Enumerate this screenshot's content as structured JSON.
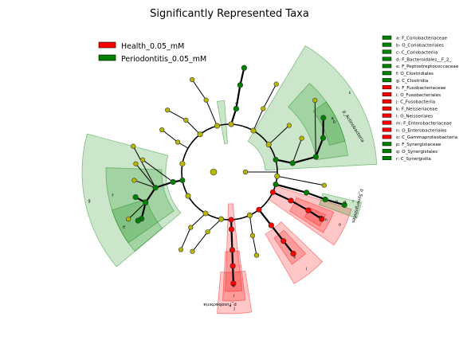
{
  "chart_data": {
    "type": "cladogram",
    "title": "Significantly Represented Taxa",
    "legend_groups": [
      {
        "name": "Health_0.05_mM",
        "color": "#ff0000"
      },
      {
        "name": "Periodontitis_0.05_mM",
        "color": "#008000"
      }
    ],
    "legend_position": "top-left",
    "taxa_legend_position": "right",
    "colors": {
      "health": "#ff0000",
      "periodontitis": "#008000",
      "neutral_node": "#b8b800"
    },
    "taxa": [
      {
        "key": "a",
        "label": "a: F_Coriobacteriaceae",
        "group": "Periodontitis_0.05_mM"
      },
      {
        "key": "b",
        "label": "b: O_Coriobacteriales",
        "group": "Periodontitis_0.05_mM"
      },
      {
        "key": "c",
        "label": "c: C_Coriobacteriia",
        "group": "Periodontitis_0.05_mM"
      },
      {
        "key": "d",
        "label": "d: F_Bacteroidales__F_2_",
        "group": "Periodontitis_0.05_mM"
      },
      {
        "key": "e",
        "label": "e: F_Peptostreptococcaceae",
        "group": "Periodontitis_0.05_mM"
      },
      {
        "key": "f",
        "label": "f: O_Clostridiales",
        "group": "Periodontitis_0.05_mM"
      },
      {
        "key": "g",
        "label": "g: C_Clostridia",
        "group": "Periodontitis_0.05_mM"
      },
      {
        "key": "h",
        "label": "h: F_Fusobacteriaceae",
        "group": "Health_0.05_mM"
      },
      {
        "key": "i",
        "label": "i: O_Fusobacteriales",
        "group": "Health_0.05_mM"
      },
      {
        "key": "j",
        "label": "j: C_Fusobacteriia",
        "group": "Health_0.05_mM"
      },
      {
        "key": "k",
        "label": "k: F_Neisseriaceae",
        "group": "Health_0.05_mM"
      },
      {
        "key": "l",
        "label": "l: O_Neisseriales",
        "group": "Health_0.05_mM"
      },
      {
        "key": "m",
        "label": "m: F_Enterobacteriaceae",
        "group": "Health_0.05_mM"
      },
      {
        "key": "n",
        "label": "n: O_Enterobacteriales",
        "group": "Health_0.05_mM"
      },
      {
        "key": "o",
        "label": "o: C_Gammaproteobacteria",
        "group": "Health_0.05_mM"
      },
      {
        "key": "p",
        "label": "p: F_Synergistaceae",
        "group": "Periodontitis_0.05_mM"
      },
      {
        "key": "q",
        "label": "q: O_Synergistales",
        "group": "Periodontitis_0.05_mM"
      },
      {
        "key": "r",
        "label": "r: C_Synergistia",
        "group": "Periodontitis_0.05_mM"
      }
    ],
    "phylum_labels": [
      {
        "text": "p_Actinobacteria",
        "group": "Periodontitis_0.05_mM"
      },
      {
        "text": "p_Synergistetes",
        "group": "Periodontitis_0.05_mM"
      },
      {
        "text": "p_Fusobacteria",
        "group": "Health_0.05_mM"
      }
    ],
    "sector_letters": [
      "a",
      "b",
      "c",
      "d",
      "e",
      "f",
      "g",
      "h",
      "i",
      "j",
      "k",
      "l",
      "m",
      "n",
      "o",
      "p",
      "q",
      "r"
    ]
  }
}
